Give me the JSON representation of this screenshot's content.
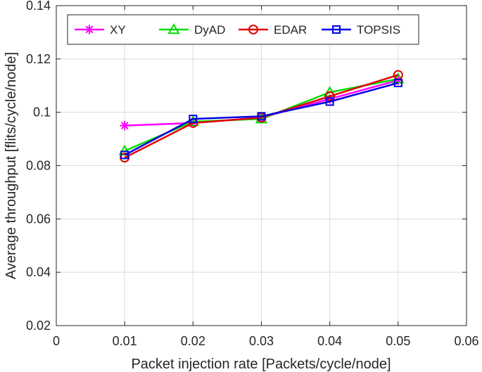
{
  "chart_data": {
    "type": "line",
    "title": "",
    "xlabel": "Packet injection rate [Packets/cycle/node]",
    "ylabel": "Average throughput [flits/cycle/node]",
    "xlim": [
      0,
      0.06
    ],
    "ylim": [
      0.02,
      0.14
    ],
    "xticks": [
      0,
      0.01,
      0.02,
      0.03,
      0.04,
      0.05,
      0.06
    ],
    "xtick_labels": [
      "0",
      "0.01",
      "0.02",
      "0.03",
      "0.04",
      "0.05",
      "0.06"
    ],
    "yticks": [
      0.02,
      0.04,
      0.06,
      0.08,
      0.1,
      0.12,
      0.14
    ],
    "ytick_labels": [
      "0.02",
      "0.04",
      "0.06",
      "0.08",
      "0.1",
      "0.12",
      "0.14"
    ],
    "grid": true,
    "legend_position": "top",
    "series": [
      {
        "name": "XY",
        "color": "#ff00ff",
        "marker": "asterisk",
        "x": [
          0.01,
          0.02,
          0.03,
          0.04,
          0.05
        ],
        "y": [
          0.095,
          0.096,
          0.098,
          0.105,
          0.112
        ]
      },
      {
        "name": "DyAD",
        "color": "#00dd00",
        "marker": "triangle",
        "x": [
          0.01,
          0.02,
          0.03,
          0.04,
          0.05
        ],
        "y": [
          0.0855,
          0.0965,
          0.0975,
          0.1075,
          0.1125
        ]
      },
      {
        "name": "EDAR",
        "color": "#e60000",
        "marker": "circle",
        "x": [
          0.01,
          0.02,
          0.03,
          0.04,
          0.05
        ],
        "y": [
          0.083,
          0.096,
          0.098,
          0.106,
          0.114
        ]
      },
      {
        "name": "TOPSIS",
        "color": "#0000e6",
        "marker": "square",
        "x": [
          0.01,
          0.02,
          0.03,
          0.04,
          0.05
        ],
        "y": [
          0.084,
          0.0975,
          0.0985,
          0.104,
          0.111
        ]
      }
    ]
  }
}
